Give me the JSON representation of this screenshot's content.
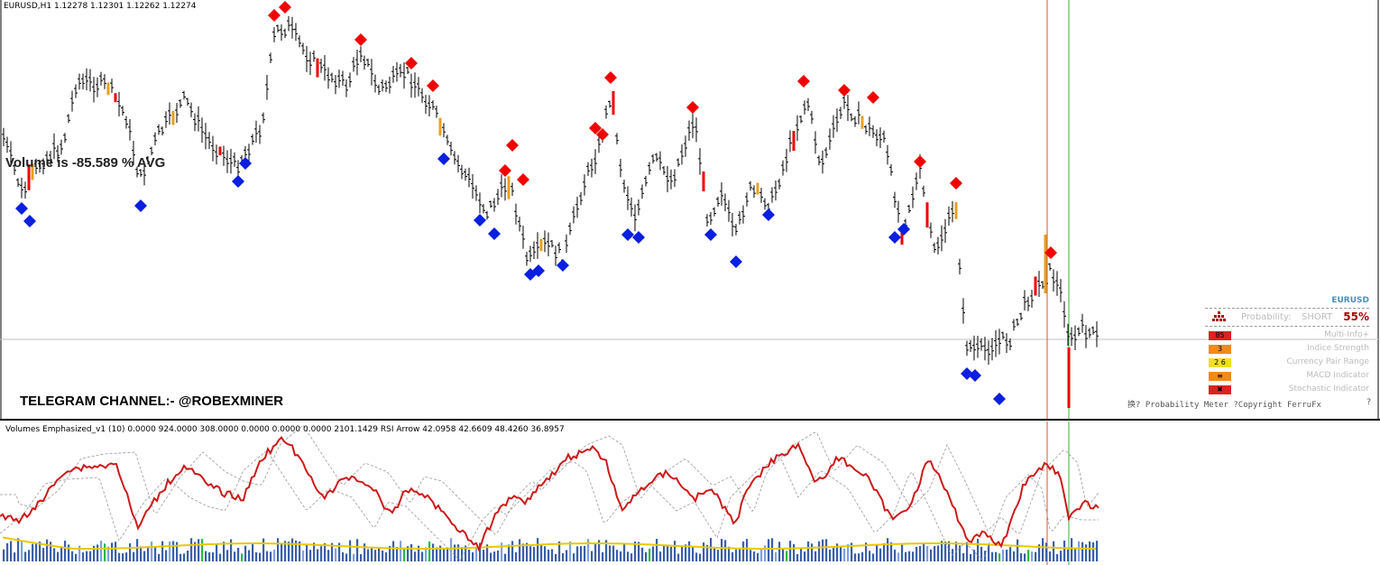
{
  "header": {
    "symbol_line": "EURUSD,H1  1.12278 1.12301 1.12262 1.12274"
  },
  "labels": {
    "volume_text": "Volume is -85.589 % AVG",
    "telegram_text": "TELEGRAM CHANNEL:- @ROBEXMINER"
  },
  "indicator_window": {
    "header": "Volumes Emphasized_v1  (10)   0.0000 924.0000 308.0000 0.0000 0.0000 0.0000 2101.1429  RSI Arrow 42.0958 42.6609 48.4260 36.8957"
  },
  "probability_meter": {
    "symbol": "EURUSD",
    "probability_label": "Probability:",
    "direction": "SHORT",
    "percent": "55%",
    "rows": [
      {
        "value": "85",
        "name": "Multi-Info+",
        "color": "#e02020"
      },
      {
        "value": "3",
        "name": "Indice Strength",
        "color": "#f08a1a"
      },
      {
        "value": "2 6",
        "name": "Currency Pair Range",
        "color": "#f0e020"
      },
      {
        "value": "≡",
        "name": "MACD Indicator",
        "color": "#f08a1a"
      },
      {
        "value": "✖",
        "name": "Stochastic Indicator",
        "color": "#e02020"
      }
    ],
    "copyright": "换? Probability Meter ?Copyright FerruFx",
    "help": "?"
  },
  "colors": {
    "bull_signal": "#0a1fe0",
    "bear_signal": "#f00000",
    "rsi_line": "#cc1a1a",
    "volume_ma": "#e8c800",
    "volume_bar": "#3a5fa8",
    "volume_high": "#22bb44",
    "vline_red": "#e05020",
    "vline_green": "#30b030"
  }
}
